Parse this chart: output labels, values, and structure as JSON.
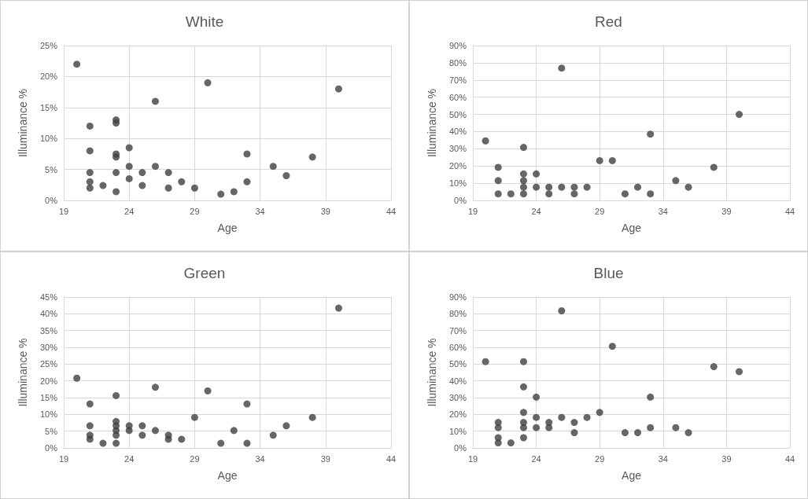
{
  "chart_data": [
    {
      "type": "scatter",
      "title": "White",
      "xlabel": "Age",
      "ylabel": "Illuminance %",
      "marker": "circle",
      "grid": true,
      "xlim": [
        19,
        44
      ],
      "xticks": [
        19,
        24,
        29,
        34,
        39,
        44
      ],
      "ylim": [
        0,
        25
      ],
      "yticks": [
        {
          "value": 0,
          "label": "0%"
        },
        {
          "value": 5,
          "label": "5%"
        },
        {
          "value": 10,
          "label": "10%"
        },
        {
          "value": 15,
          "label": "15%"
        },
        {
          "value": 20,
          "label": "20%"
        },
        {
          "value": 25,
          "label": "25%"
        }
      ],
      "series": [
        {
          "color": "#404040",
          "x": [
            20,
            21,
            21,
            21,
            21,
            21,
            22,
            23,
            23,
            23,
            23,
            23,
            23,
            24,
            24,
            24,
            25,
            25,
            26,
            26,
            27,
            27,
            28,
            29,
            30,
            31,
            32,
            33,
            33,
            35,
            36,
            38,
            40
          ],
          "values": [
            22,
            12,
            8,
            4.5,
            3,
            2,
            2.4,
            13,
            12.5,
            7.5,
            7,
            4.5,
            1.4,
            8.5,
            5.5,
            3.5,
            4.5,
            2.4,
            16,
            5.5,
            4.5,
            2,
            3,
            2,
            19,
            1,
            1.4,
            7.5,
            3,
            5.5,
            4,
            7,
            18
          ]
        }
      ]
    },
    {
      "type": "scatter",
      "title": "Red",
      "xlabel": "Age",
      "ylabel": "Illuminance %",
      "marker": "circle",
      "grid": true,
      "xlim": [
        19,
        44
      ],
      "xticks": [
        19,
        24,
        29,
        34,
        39,
        44
      ],
      "ylim": [
        0,
        90
      ],
      "yticks": [
        {
          "value": 0,
          "label": "0%"
        },
        {
          "value": 10,
          "label": "10%"
        },
        {
          "value": 20,
          "label": "20%"
        },
        {
          "value": 30,
          "label": "30%"
        },
        {
          "value": 40,
          "label": "40%"
        },
        {
          "value": 50,
          "label": "50%"
        },
        {
          "value": 60,
          "label": "60%"
        },
        {
          "value": 70,
          "label": "70%"
        },
        {
          "value": 80,
          "label": "80%"
        },
        {
          "value": 90,
          "label": "90%"
        }
      ],
      "series": [
        {
          "color": "#404040",
          "x": [
            20,
            21,
            21,
            21,
            22,
            23,
            23,
            23,
            23,
            23,
            24,
            24,
            25,
            25,
            26,
            26,
            27,
            27,
            28,
            29,
            30,
            31,
            32,
            33,
            33,
            35,
            36,
            38,
            40
          ],
          "values": [
            34.6,
            19.2,
            11.5,
            3.8,
            3.8,
            30.8,
            15.4,
            11.5,
            7.7,
            3.8,
            15.4,
            7.7,
            7.7,
            3.8,
            76.9,
            7.7,
            7.7,
            3.8,
            7.7,
            23.1,
            23.1,
            3.8,
            7.7,
            38.5,
            3.8,
            11.5,
            7.7,
            19.2,
            50
          ]
        }
      ]
    },
    {
      "type": "scatter",
      "title": "Green",
      "xlabel": "Age",
      "ylabel": "Illuminance %",
      "marker": "circle",
      "grid": true,
      "xlim": [
        19,
        44
      ],
      "xticks": [
        19,
        24,
        29,
        34,
        39,
        44
      ],
      "ylim": [
        0,
        45
      ],
      "yticks": [
        {
          "value": 0,
          "label": "0%"
        },
        {
          "value": 5,
          "label": "5%"
        },
        {
          "value": 10,
          "label": "10%"
        },
        {
          "value": 15,
          "label": "15%"
        },
        {
          "value": 20,
          "label": "20%"
        },
        {
          "value": 25,
          "label": "25%"
        },
        {
          "value": 30,
          "label": "30%"
        },
        {
          "value": 35,
          "label": "35%"
        },
        {
          "value": 40,
          "label": "40%"
        },
        {
          "value": 45,
          "label": "45%"
        }
      ],
      "series": [
        {
          "color": "#404040",
          "x": [
            20,
            21,
            21,
            21,
            21,
            22,
            23,
            23,
            23,
            23,
            23,
            23,
            24,
            24,
            25,
            25,
            26,
            26,
            27,
            27,
            28,
            29,
            30,
            31,
            32,
            33,
            33,
            35,
            36,
            38,
            40
          ],
          "values": [
            20.8,
            13.1,
            6.6,
            3.8,
            2.6,
            1.4,
            15.6,
            7.9,
            6.6,
            5.2,
            3.8,
            1.4,
            6.6,
            5.2,
            6.6,
            3.8,
            18.1,
            5.2,
            3.8,
            2.6,
            2.6,
            9.1,
            17,
            1.4,
            5.2,
            13.1,
            1.4,
            3.8,
            6.6,
            9.1,
            41.7
          ]
        }
      ]
    },
    {
      "type": "scatter",
      "title": "Blue",
      "xlabel": "Age",
      "ylabel": "Illuminance %",
      "marker": "circle",
      "grid": true,
      "xlim": [
        19,
        44
      ],
      "xticks": [
        19,
        24,
        29,
        34,
        39,
        44
      ],
      "ylim": [
        0,
        90
      ],
      "yticks": [
        {
          "value": 0,
          "label": "0%"
        },
        {
          "value": 10,
          "label": "10%"
        },
        {
          "value": 20,
          "label": "20%"
        },
        {
          "value": 30,
          "label": "30%"
        },
        {
          "value": 40,
          "label": "40%"
        },
        {
          "value": 50,
          "label": "50%"
        },
        {
          "value": 60,
          "label": "60%"
        },
        {
          "value": 70,
          "label": "70%"
        },
        {
          "value": 80,
          "label": "80%"
        },
        {
          "value": 90,
          "label": "90%"
        }
      ],
      "series": [
        {
          "color": "#404040",
          "x": [
            20,
            21,
            21,
            21,
            21,
            22,
            23,
            23,
            23,
            23,
            23,
            23,
            24,
            24,
            24,
            25,
            25,
            26,
            26,
            27,
            27,
            28,
            29,
            30,
            31,
            32,
            33,
            33,
            35,
            36,
            38,
            40
          ],
          "values": [
            51.5,
            15.2,
            12.1,
            6.1,
            3,
            3,
            51.5,
            36.4,
            21.2,
            15.2,
            12.1,
            6.1,
            30.3,
            18.2,
            12.1,
            15.2,
            12.1,
            81.8,
            18.2,
            15.2,
            9.1,
            18.2,
            21.2,
            60.6,
            9.1,
            9.1,
            30.3,
            12.1,
            12.1,
            9.1,
            48.5,
            45.5
          ]
        }
      ]
    }
  ]
}
